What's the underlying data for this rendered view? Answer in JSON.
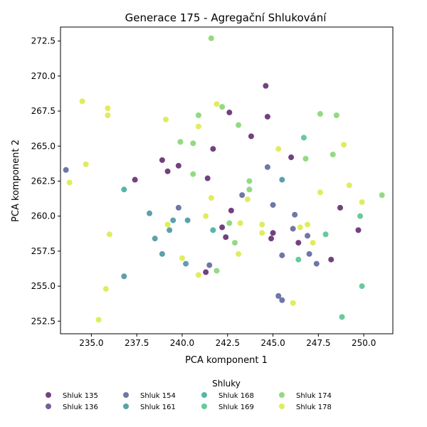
{
  "chart_data": {
    "type": "scatter",
    "title": "Generace 175 - Agregační Shlukování",
    "xlabel": "PCA komponent 1",
    "ylabel": "PCA komponent 2",
    "xlim": [
      233.3,
      251.6
    ],
    "ylim": [
      251.6,
      273.5
    ],
    "x_ticks": [
      235.0,
      237.5,
      240.0,
      242.5,
      245.0,
      247.5,
      250.0
    ],
    "x_tick_labels": [
      "235.0",
      "237.5",
      "240.0",
      "242.5",
      "245.0",
      "247.5",
      "250.0"
    ],
    "y_ticks": [
      252.5,
      255.0,
      257.5,
      260.0,
      262.5,
      265.0,
      267.5,
      270.0,
      272.5
    ],
    "y_tick_labels": [
      "252.5",
      "255.0",
      "257.5",
      "260.0",
      "262.5",
      "265.0",
      "267.5",
      "270.0",
      "272.5"
    ],
    "grid": false,
    "legend": {
      "title": "Shluky",
      "placement": "bottom-outside",
      "columns": 6
    },
    "series": [
      {
        "name": "Shluk 135",
        "color": "#440154",
        "points": [
          [
            244.6,
            269.3
          ],
          [
            242.6,
            267.4
          ],
          [
            244.7,
            267.1
          ],
          [
            243.8,
            265.7
          ],
          [
            241.7,
            264.8
          ],
          [
            246.0,
            264.2
          ],
          [
            238.9,
            264.0
          ],
          [
            239.8,
            263.6
          ],
          [
            239.2,
            263.2
          ],
          [
            237.4,
            262.6
          ],
          [
            241.4,
            262.7
          ],
          [
            242.7,
            260.4
          ],
          [
            248.7,
            260.6
          ],
          [
            242.2,
            259.2
          ],
          [
            249.7,
            259.0
          ],
          [
            245.0,
            258.8
          ],
          [
            242.4,
            258.5
          ],
          [
            244.9,
            258.4
          ],
          [
            246.4,
            258.1
          ],
          [
            248.2,
            256.9
          ],
          [
            241.3,
            256.0
          ]
        ]
      },
      {
        "name": "Shluk 136",
        "color": "#482878",
        "points": []
      },
      {
        "name": "Shluk 154",
        "color": "#3e4a89",
        "points": [
          [
            233.6,
            263.3
          ],
          [
            244.7,
            263.5
          ],
          [
            243.3,
            261.5
          ],
          [
            245.0,
            260.8
          ],
          [
            239.8,
            260.6
          ],
          [
            246.1,
            259.1
          ],
          [
            246.2,
            260.1
          ],
          [
            246.9,
            258.6
          ],
          [
            245.5,
            257.2
          ],
          [
            247.0,
            257.3
          ],
          [
            247.4,
            256.6
          ],
          [
            241.5,
            256.5
          ],
          [
            245.3,
            254.3
          ],
          [
            245.5,
            254.0
          ]
        ]
      },
      {
        "name": "Shluk 161",
        "color": "#26828e",
        "points": [
          [
            245.5,
            262.6
          ],
          [
            238.2,
            260.2
          ],
          [
            239.5,
            259.7
          ],
          [
            240.3,
            259.7
          ],
          [
            239.3,
            259.0
          ],
          [
            238.5,
            258.4
          ],
          [
            238.9,
            257.3
          ],
          [
            240.2,
            256.6
          ],
          [
            236.8,
            255.7
          ]
        ]
      },
      {
        "name": "Shluk 168",
        "color": "#1f9e89",
        "points": [
          [
            236.8,
            261.9
          ],
          [
            241.7,
            259.0
          ]
        ]
      },
      {
        "name": "Shluk 169",
        "color": "#35b779",
        "points": [
          [
            246.7,
            265.6
          ],
          [
            249.8,
            260.0
          ],
          [
            247.9,
            258.7
          ],
          [
            246.4,
            256.9
          ],
          [
            249.9,
            255.0
          ],
          [
            248.8,
            252.8
          ]
        ]
      },
      {
        "name": "Shluk 174",
        "color": "#6ece58",
        "points": [
          [
            241.6,
            272.7
          ],
          [
            242.2,
            267.8
          ],
          [
            240.9,
            267.2
          ],
          [
            243.1,
            266.5
          ],
          [
            247.6,
            267.3
          ],
          [
            248.5,
            267.2
          ],
          [
            239.9,
            265.3
          ],
          [
            240.6,
            265.2
          ],
          [
            248.3,
            264.4
          ],
          [
            246.8,
            264.1
          ],
          [
            240.6,
            263.0
          ],
          [
            243.7,
            262.5
          ],
          [
            243.7,
            261.9
          ],
          [
            251.0,
            261.5
          ],
          [
            242.6,
            259.5
          ],
          [
            242.9,
            258.1
          ],
          [
            241.9,
            256.1
          ]
        ]
      },
      {
        "name": "Shluk 178",
        "color": "#d6e52a",
        "points": [
          [
            234.5,
            268.2
          ],
          [
            235.9,
            267.7
          ],
          [
            235.9,
            267.2
          ],
          [
            239.1,
            266.9
          ],
          [
            241.9,
            268.0
          ],
          [
            240.9,
            266.4
          ],
          [
            245.3,
            264.8
          ],
          [
            248.9,
            265.1
          ],
          [
            234.7,
            263.7
          ],
          [
            233.8,
            262.4
          ],
          [
            249.2,
            262.2
          ],
          [
            247.6,
            261.7
          ],
          [
            241.6,
            261.3
          ],
          [
            243.6,
            261.2
          ],
          [
            249.9,
            261.0
          ],
          [
            241.3,
            260.0
          ],
          [
            239.2,
            259.4
          ],
          [
            243.2,
            259.5
          ],
          [
            244.4,
            259.4
          ],
          [
            246.9,
            259.4
          ],
          [
            236.0,
            258.7
          ],
          [
            244.4,
            258.8
          ],
          [
            246.5,
            259.2
          ],
          [
            247.2,
            258.1
          ],
          [
            243.1,
            257.3
          ],
          [
            240.0,
            257.0
          ],
          [
            240.9,
            255.8
          ],
          [
            235.8,
            254.8
          ],
          [
            246.1,
            253.8
          ],
          [
            235.4,
            252.6
          ]
        ]
      }
    ]
  }
}
